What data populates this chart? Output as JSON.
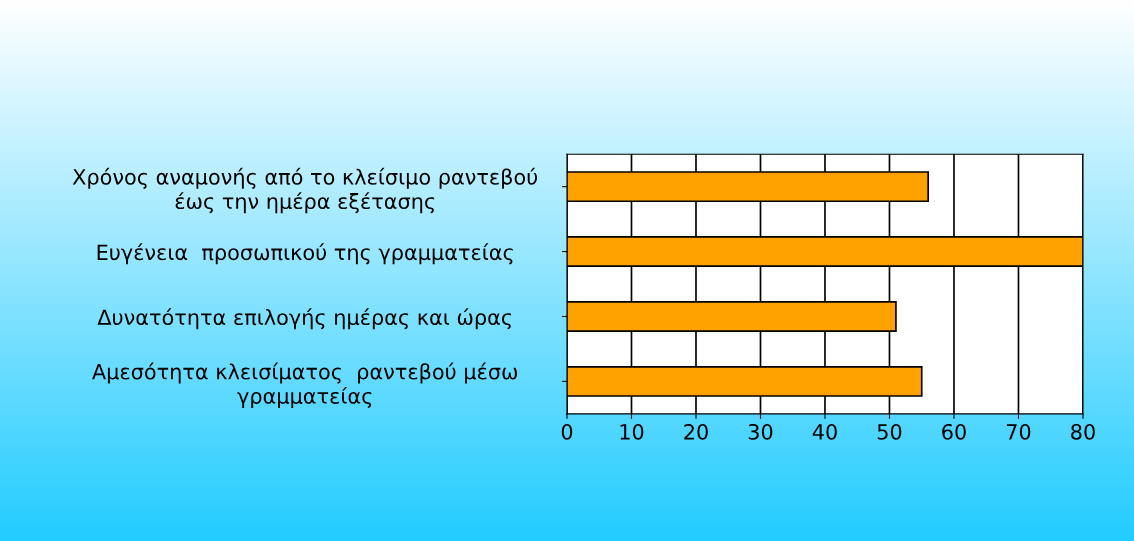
{
  "chart_data": {
    "type": "bar",
    "orientation": "horizontal",
    "categories": [
      "Χρόνος αναμονής από το κλείσιμο ραντεβού\nέως την ημέρα εξέτασης",
      "Ευγένεια  προσωπικού της γραμματείας",
      "Δυνατότητα επιλογής ημέρας και ώρας",
      "Αμεσότητα κλεισίματος  ραντεβού μέσω\nγραμματείας"
    ],
    "values": [
      56,
      80,
      51,
      55
    ],
    "color": "#ffa200",
    "xlim": [
      0,
      80
    ],
    "xticks": [
      0,
      10,
      20,
      30,
      40,
      50,
      60,
      70,
      80
    ],
    "grid": "x"
  }
}
